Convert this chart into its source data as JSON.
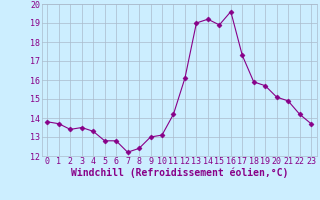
{
  "x": [
    0,
    1,
    2,
    3,
    4,
    5,
    6,
    7,
    8,
    9,
    10,
    11,
    12,
    13,
    14,
    15,
    16,
    17,
    18,
    19,
    20,
    21,
    22,
    23
  ],
  "y": [
    13.8,
    13.7,
    13.4,
    13.5,
    13.3,
    12.8,
    12.8,
    12.2,
    12.4,
    13.0,
    13.1,
    14.2,
    16.1,
    19.0,
    19.2,
    18.9,
    19.6,
    17.3,
    15.9,
    15.7,
    15.1,
    14.9,
    14.2,
    13.7
  ],
  "xlabel": "Windchill (Refroidissement éolien,°C)",
  "ylim": [
    12,
    20
  ],
  "xlim_min": -0.5,
  "xlim_max": 23.5,
  "yticks": [
    12,
    13,
    14,
    15,
    16,
    17,
    18,
    19,
    20
  ],
  "xticks": [
    0,
    1,
    2,
    3,
    4,
    5,
    6,
    7,
    8,
    9,
    10,
    11,
    12,
    13,
    14,
    15,
    16,
    17,
    18,
    19,
    20,
    21,
    22,
    23
  ],
  "line_color": "#880088",
  "marker": "D",
  "marker_size": 2.5,
  "bg_color": "#cceeff",
  "grid_color": "#aabbcc",
  "tick_label_fontsize": 6.0,
  "xlabel_fontsize": 7.0,
  "xlabel_color": "#880088"
}
